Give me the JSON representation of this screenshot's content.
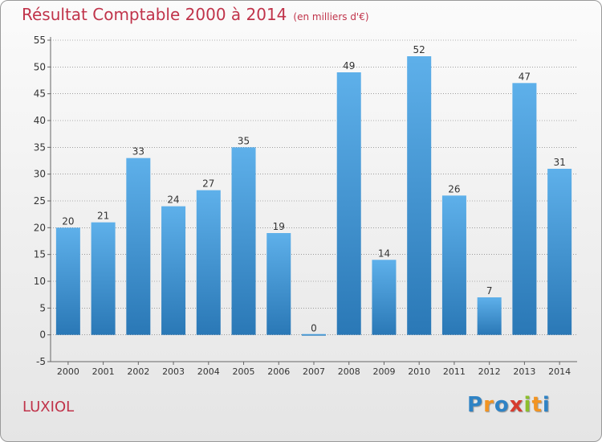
{
  "title": {
    "main": "Résultat Comptable 2000 à 2014",
    "unit": "(en milliers d'€)"
  },
  "location": "LUXIOL",
  "logo": {
    "text": "Proxiti",
    "letters": [
      {
        "char": "P",
        "color": "#2f83c5"
      },
      {
        "char": "r",
        "color": "#f29422"
      },
      {
        "char": "o",
        "color": "#2f83c5"
      },
      {
        "char": "x",
        "color": "#d63c2f"
      },
      {
        "char": "i",
        "color": "#8dbf2d"
      },
      {
        "char": "t",
        "color": "#f29422"
      },
      {
        "char": "i",
        "color": "#2f83c5"
      }
    ]
  },
  "colors": {
    "title": "#c0334a",
    "bar_light": "#5eb0ea",
    "bar_dark": "#2a78b6",
    "grid": "#6a6a6a",
    "axis_text": "#333333"
  },
  "chart_data": {
    "type": "bar",
    "title": "Résultat Comptable 2000 à 2014",
    "subtitle": "(en milliers d'€)",
    "xlabel": "",
    "ylabel": "",
    "categories": [
      "2000",
      "2001",
      "2002",
      "2003",
      "2004",
      "2005",
      "2006",
      "2007",
      "2008",
      "2009",
      "2010",
      "2011",
      "2012",
      "2013",
      "2014"
    ],
    "values": [
      20,
      21,
      33,
      24,
      27,
      35,
      19,
      0,
      49,
      14,
      52,
      26,
      7,
      47,
      31
    ],
    "ylim": [
      -5,
      55
    ],
    "yticks": [
      -5,
      0,
      5,
      10,
      15,
      20,
      25,
      30,
      35,
      40,
      45,
      50,
      55
    ],
    "grid": "horizontal dashed",
    "data_labels": true
  }
}
